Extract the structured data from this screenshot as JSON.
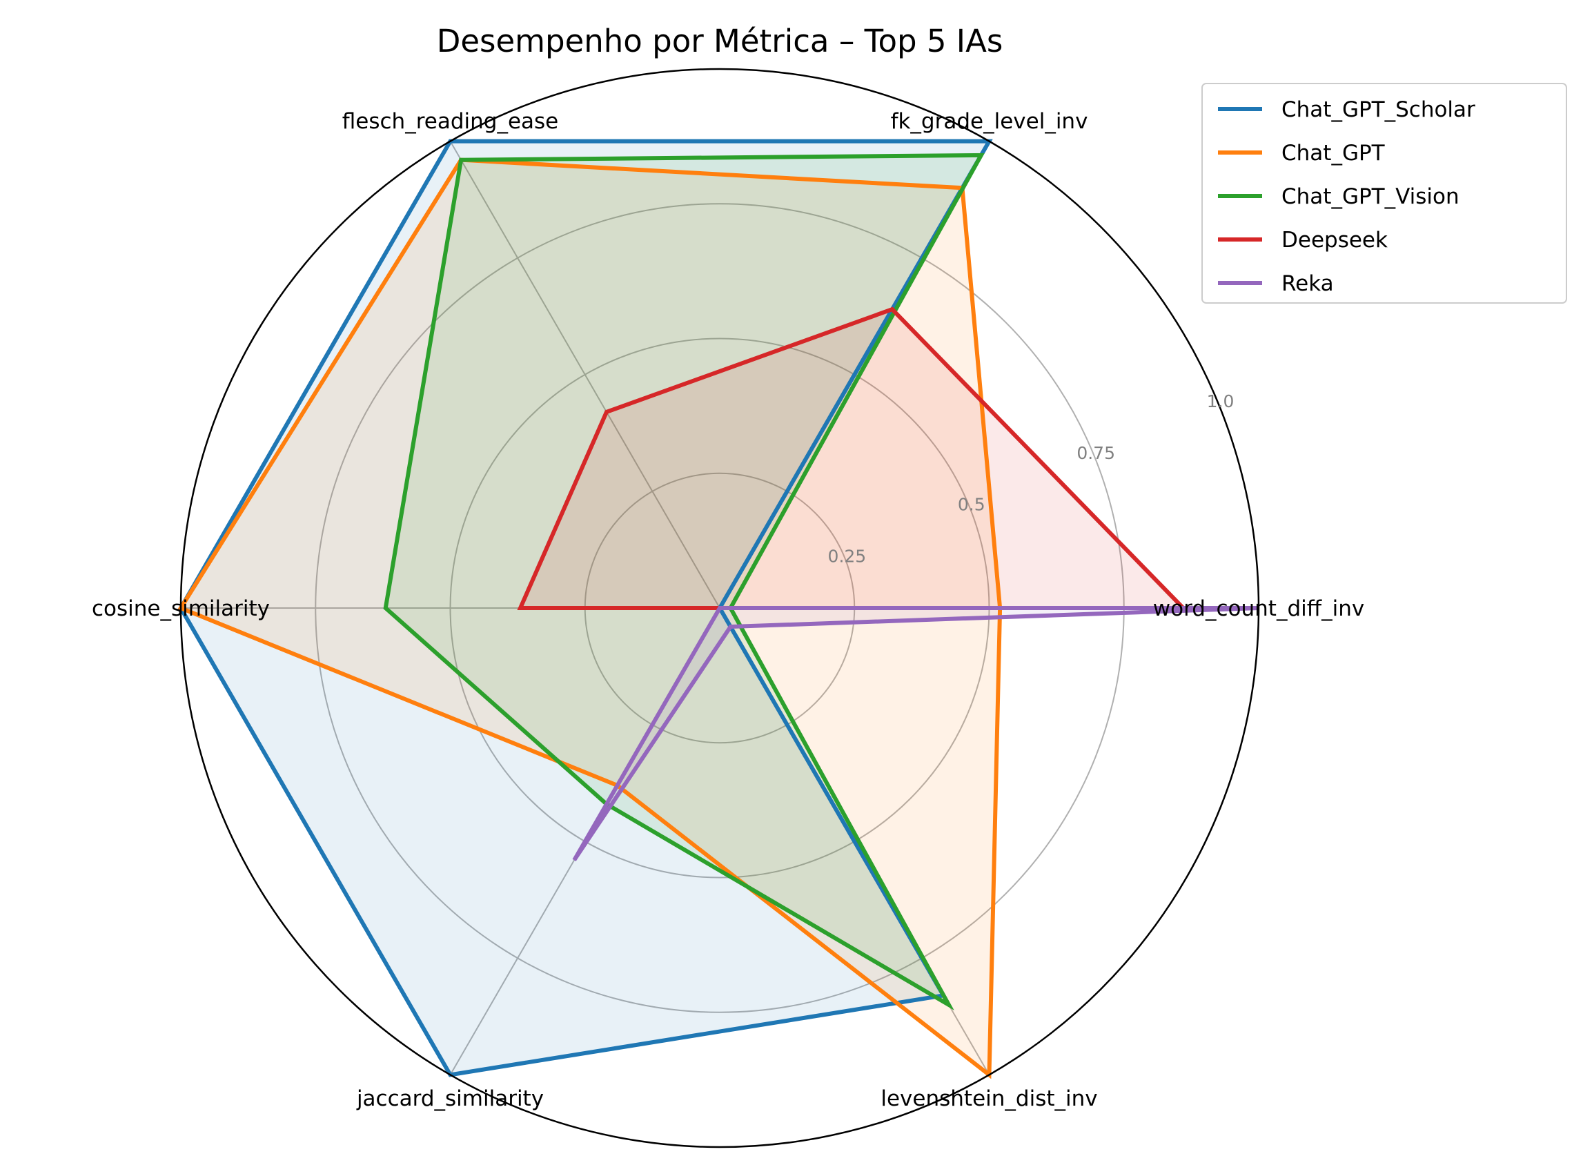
{
  "chart_data": {
    "type": "radar",
    "title": "Desempenho por Métrica – Top 5 IAs",
    "categories": [
      "word_count_diff_inv",
      "fk_grade_level_inv",
      "flesch_reading_ease",
      "cosine_similarity",
      "jaccard_similarity",
      "levenshtein_dist_inv"
    ],
    "radial_ticks": [
      {
        "value": 0.25,
        "label": "0.25"
      },
      {
        "value": 0.5,
        "label": "0.5"
      },
      {
        "value": 0.75,
        "label": "0.75"
      },
      {
        "value": 1.0,
        "label": "1.0"
      }
    ],
    "rlim": [
      0,
      1
    ],
    "grid": true,
    "legend_position": "top-right",
    "series": [
      {
        "name": "Chat_GPT_Scholar",
        "color": "#1f77b4",
        "values": [
          0.0,
          1.0,
          1.0,
          1.0,
          1.0,
          0.83
        ]
      },
      {
        "name": "Chat_GPT",
        "color": "#ff7f0e",
        "values": [
          0.52,
          0.9,
          0.96,
          1.0,
          0.38,
          1.0
        ]
      },
      {
        "name": "Chat_GPT_Vision",
        "color": "#2ca02c",
        "values": [
          0.02,
          0.97,
          0.96,
          0.62,
          0.42,
          0.85
        ]
      },
      {
        "name": "Deepseek",
        "color": "#d62728",
        "values": [
          0.86,
          0.64,
          0.42,
          0.37,
          0.0,
          0.0
        ]
      },
      {
        "name": "Reka",
        "color": "#9467bd",
        "values": [
          1.0,
          0.0,
          0.0,
          0.0,
          0.54,
          0.04
        ]
      }
    ]
  }
}
